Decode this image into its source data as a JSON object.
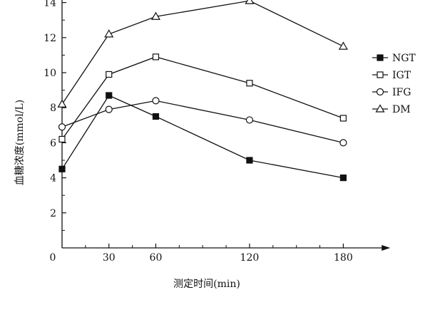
{
  "chart_data": {
    "type": "line",
    "title": "",
    "xlabel": "测定时间(min)",
    "ylabel": "血糖浓度(mmol/L)",
    "x": [
      0,
      30,
      60,
      120,
      180
    ],
    "xlim": [
      0,
      200
    ],
    "ylim": [
      0,
      15.5
    ],
    "xticks": [
      0,
      30,
      60,
      120,
      180
    ],
    "xminor": [
      15,
      45,
      75,
      90,
      105,
      135,
      150,
      165
    ],
    "yticks": [
      2,
      4,
      6,
      8,
      10,
      12,
      14
    ],
    "grid": false,
    "legend_position": "right",
    "series": [
      {
        "name": "NGT",
        "marker": "filled-square",
        "values": [
          4.5,
          8.7,
          7.5,
          5.0,
          4.0
        ]
      },
      {
        "name": "IGT",
        "marker": "open-square",
        "values": [
          6.2,
          9.9,
          10.9,
          9.4,
          7.4
        ]
      },
      {
        "name": "IFG",
        "marker": "open-circle",
        "values": [
          6.9,
          7.9,
          8.4,
          7.3,
          6.0
        ]
      },
      {
        "name": "DM",
        "marker": "open-triangle",
        "values": [
          8.2,
          12.2,
          13.2,
          14.1,
          11.5
        ]
      }
    ],
    "origin_label": "0"
  }
}
